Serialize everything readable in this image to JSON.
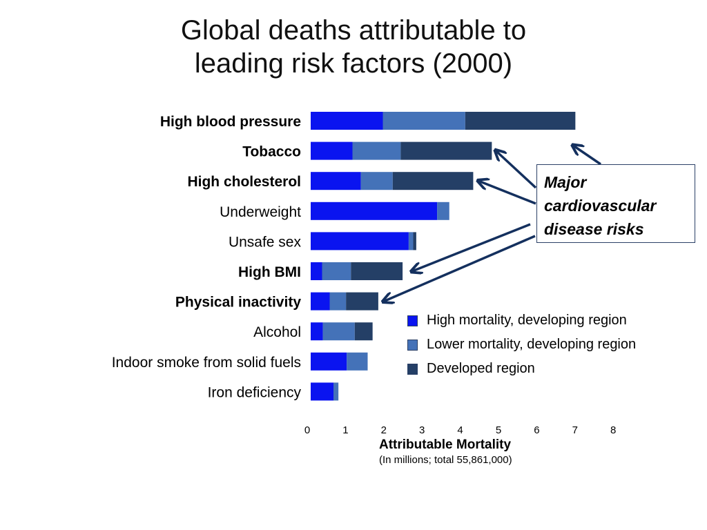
{
  "title": {
    "line1": "Global deaths attributable to",
    "line2": "leading risk factors (2000)"
  },
  "chart_data": {
    "type": "bar",
    "orientation": "horizontal",
    "stacked": true,
    "categories": [
      "High blood pressure",
      "Tobacco",
      "High cholesterol",
      "Underweight",
      "Unsafe sex",
      "High BMI",
      "Physical inactivity",
      "Alcohol",
      "Indoor smoke from solid fuels",
      "Iron deficiency"
    ],
    "bold_categories": [
      "High blood pressure",
      "Tobacco",
      "High cholesterol",
      "High BMI",
      "Physical inactivity"
    ],
    "series": [
      {
        "name": "High mortality, developing region",
        "color": "#0a14f0",
        "values": [
          1.9,
          1.1,
          1.32,
          3.33,
          2.58,
          0.3,
          0.5,
          0.32,
          0.95,
          0.6
        ]
      },
      {
        "name": "Lower mortality, developing region",
        "color": "#4472b8",
        "values": [
          2.17,
          1.27,
          0.84,
          0.32,
          0.12,
          0.76,
          0.43,
          0.84,
          0.55,
          0.13
        ]
      },
      {
        "name": "Developed region",
        "color": "#243f66",
        "values": [
          2.9,
          2.4,
          2.12,
          0,
          0.08,
          1.36,
          0.85,
          0.47,
          0,
          0
        ]
      }
    ],
    "x_ticks": [
      0,
      1,
      2,
      3,
      4,
      5,
      6,
      7,
      8
    ],
    "xlim": [
      0,
      8
    ],
    "xlabel": "Attributable Mortality",
    "xlabel_sub": "(In millions; total 55,861,000)",
    "grid": false,
    "legend_position": "right-middle",
    "annotation": {
      "lines": [
        "Major",
        "cardiovascular",
        "disease risks"
      ],
      "points_to": [
        "High blood pressure",
        "Tobacco",
        "High cholesterol",
        "High BMI",
        "Physical inactivity"
      ]
    }
  }
}
